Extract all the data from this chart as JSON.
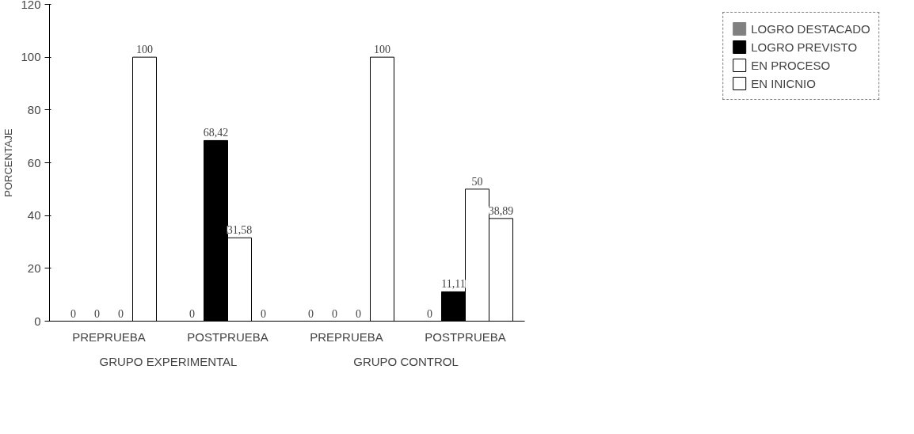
{
  "chart_data": {
    "type": "bar",
    "ylabel": "PORCENTAJE",
    "categories": [
      "PREPRUEBA",
      "POSTPRUEBA",
      "PREPRUEBA",
      "POSTPRUEBA"
    ],
    "annotations": [
      "GRUPO EXPERIMENTAL",
      "GRUPO CONTROL"
    ],
    "series": [
      {
        "name": "LOGRO DESTACADO",
        "color": "#808080",
        "values": [
          0,
          0,
          0,
          0
        ],
        "value_labels": [
          "0",
          "0",
          "0",
          "0"
        ]
      },
      {
        "name": "LOGRO PREVISTO",
        "color": "#000000",
        "values": [
          0,
          68.42,
          0,
          11.11
        ],
        "value_labels": [
          "0",
          "68,42",
          "0",
          "11,11"
        ]
      },
      {
        "name": "EN PROCESO",
        "color": "#ffffff",
        "values": [
          0,
          31.58,
          0,
          50
        ],
        "value_labels": [
          "0",
          "31,58",
          "0",
          "50"
        ]
      },
      {
        "name": "EN INICNIO",
        "color": "#ffffff",
        "values": [
          100,
          0,
          100,
          38.89
        ],
        "value_labels": [
          "100",
          "0",
          "100",
          "38,89"
        ]
      }
    ],
    "ylim": [
      0,
      120
    ],
    "yticks": [
      0,
      20,
      40,
      60,
      80,
      100,
      120
    ],
    "grid": false,
    "legend": "top right"
  }
}
